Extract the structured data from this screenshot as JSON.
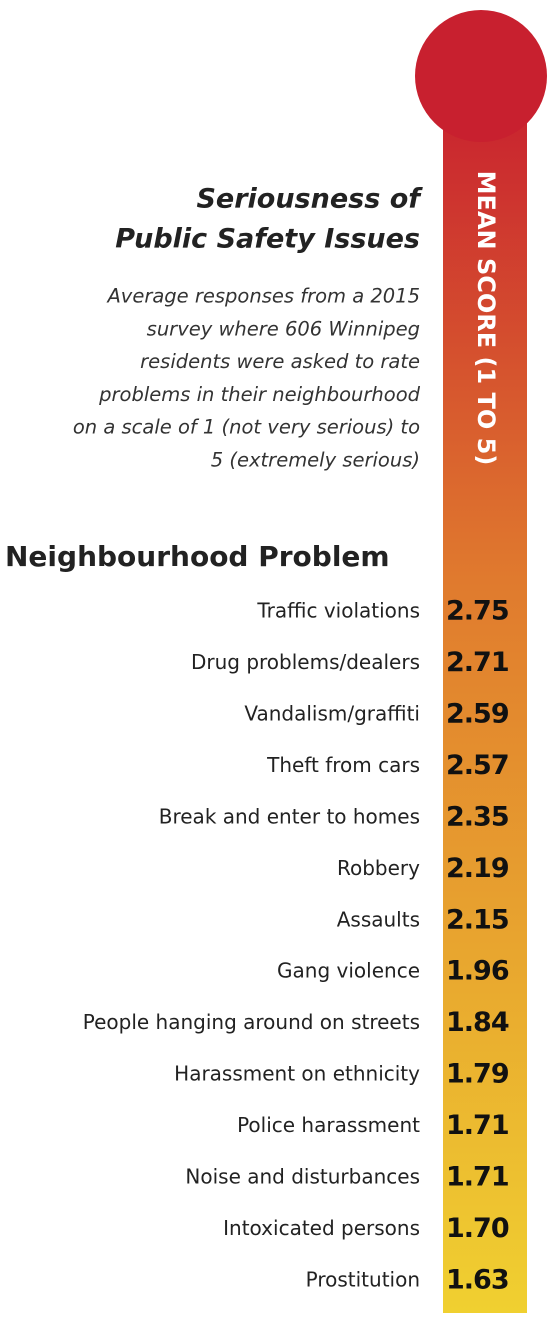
{
  "chart_data": {
    "type": "table",
    "title": [
      "Seriousness of",
      "Public Safety Issues"
    ],
    "subtitle": [
      "Average responses from a 2015",
      "survey where 606 Winnipeg",
      "residents were asked to rate",
      "problems in their neighbourhood",
      "on a scale of 1 (not very serious) to",
      "5 (extremely serious)"
    ],
    "category_label": "Neighbourhood Problem",
    "value_label": "MEAN SCORE (1 TO 5)",
    "categories": [
      "Traffic violations",
      "Drug problems/dealers",
      "Vandalism/graffiti",
      "Theft from cars",
      "Break and enter to homes",
      "Robbery",
      "Assaults",
      "Gang violence",
      "People hanging around on streets",
      "Harassment on ethnicity",
      "Police harassment",
      "Noise and disturbances",
      "Intoxicated persons",
      "Prostitution"
    ],
    "values": [
      2.75,
      2.71,
      2.59,
      2.57,
      2.35,
      2.19,
      2.15,
      1.96,
      1.84,
      1.79,
      1.71,
      1.71,
      1.7,
      1.63
    ],
    "value_labels": [
      "2.75",
      "2.71",
      "2.59",
      "2.57",
      "2.35",
      "2.19",
      "2.15",
      "1.96",
      "1.84",
      "1.79",
      "1.71",
      "1.71",
      "1.70",
      "1.63"
    ],
    "colors": [
      "#c8202f",
      "#e07a2e",
      "#f0d030"
    ]
  }
}
